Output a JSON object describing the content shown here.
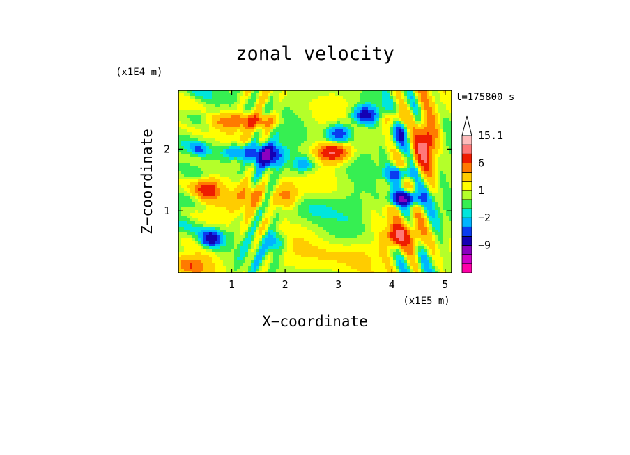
{
  "chart_data": {
    "type": "heatmap",
    "title": "zonal velocity",
    "xlabel": "X−coordinate",
    "ylabel": "Z−coordinate",
    "x_scale_label": "(x1E5 m)",
    "y_scale_label": "(x1E4 m)",
    "time_label": "t=175800 s",
    "xlim": [
      0,
      5.12
    ],
    "ylim": [
      0,
      2.95
    ],
    "x_ticks": [
      {
        "value": 1,
        "label": "1"
      },
      {
        "value": 2,
        "label": "2"
      },
      {
        "value": 3,
        "label": "3"
      },
      {
        "value": 4,
        "label": "4"
      },
      {
        "value": 5,
        "label": "5"
      }
    ],
    "y_ticks": [
      {
        "value": 1,
        "label": "1"
      },
      {
        "value": 2,
        "label": "2"
      }
    ],
    "colorbar": {
      "levels": [
        -15,
        -12,
        -9,
        -6,
        -4,
        -2,
        -1,
        0,
        1,
        2,
        4,
        6,
        9,
        12,
        15.1
      ],
      "colors": [
        "#ff00a8",
        "#d000c8",
        "#8a00c0",
        "#1400b4",
        "#0a3cf0",
        "#00b4ff",
        "#00e6dc",
        "#36ef52",
        "#b4ff2a",
        "#ffff00",
        "#ffcc00",
        "#ff7a00",
        "#ee1c00",
        "#ff7878",
        "#ffbcbc"
      ],
      "labeled_values": [
        {
          "value": 15.1,
          "label": "15.1"
        },
        {
          "value": 6,
          "label": "6"
        },
        {
          "value": 1,
          "label": "1"
        },
        {
          "value": -2,
          "label": "−2"
        },
        {
          "value": -9,
          "label": "−9"
        }
      ],
      "extend_max": true
    },
    "features": [
      {
        "x": 0.62,
        "z": 0.55,
        "u": -9,
        "sx": 0.2,
        "sz": 0.14
      },
      {
        "x": 1.65,
        "z": 1.9,
        "u": -11,
        "sx": 0.28,
        "sz": 0.17
      },
      {
        "x": 1.1,
        "z": 1.95,
        "u": -5,
        "sx": 0.3,
        "sz": 0.12
      },
      {
        "x": 0.4,
        "z": 2.0,
        "u": -3,
        "sx": 0.14,
        "sz": 0.09
      },
      {
        "x": 2.35,
        "z": 1.75,
        "u": -4,
        "sx": 0.24,
        "sz": 0.14
      },
      {
        "x": 3.0,
        "z": 2.25,
        "u": -7,
        "sx": 0.22,
        "sz": 0.16
      },
      {
        "x": 3.5,
        "z": 2.55,
        "u": -8,
        "sx": 0.22,
        "sz": 0.13
      },
      {
        "x": 4.25,
        "z": 1.2,
        "u": -9,
        "sx": 0.3,
        "sz": 0.12
      },
      {
        "x": 4.15,
        "z": 1.6,
        "u": -6,
        "sx": 0.25,
        "sz": 0.12
      },
      {
        "x": 4.15,
        "z": 2.2,
        "u": -6,
        "sx": 0.14,
        "sz": 0.22
      },
      {
        "x": 2.6,
        "z": 1.05,
        "u": -2,
        "sx": 0.4,
        "sz": 0.22
      },
      {
        "x": 3.3,
        "z": 1.05,
        "u": -1,
        "sx": 0.3,
        "sz": 0.28
      },
      {
        "x": 2.9,
        "z": 1.95,
        "u": 9,
        "sx": 0.3,
        "sz": 0.15
      },
      {
        "x": 1.5,
        "z": 2.45,
        "u": 6,
        "sx": 0.35,
        "sz": 0.12
      },
      {
        "x": 0.9,
        "z": 2.45,
        "u": 4,
        "sx": 0.3,
        "sz": 0.12
      },
      {
        "x": 0.55,
        "z": 1.35,
        "u": 7,
        "sx": 0.22,
        "sz": 0.16
      },
      {
        "x": 1.35,
        "z": 1.25,
        "u": 5,
        "sx": 0.28,
        "sz": 0.2
      },
      {
        "x": 2.0,
        "z": 1.25,
        "u": 5,
        "sx": 0.22,
        "sz": 0.2
      },
      {
        "x": 4.1,
        "z": 0.6,
        "u": 8,
        "sx": 0.2,
        "sz": 0.17
      },
      {
        "x": 4.45,
        "z": 0.6,
        "u": 4,
        "sx": 0.16,
        "sz": 0.3
      },
      {
        "x": 4.65,
        "z": 2.1,
        "u": 9,
        "sx": 0.18,
        "sz": 0.4
      },
      {
        "x": 4.05,
        "z": 2.5,
        "u": 4,
        "sx": 0.2,
        "sz": 0.12
      },
      {
        "x": 3.2,
        "z": 0.3,
        "u": 2,
        "sx": 0.7,
        "sz": 0.25
      },
      {
        "x": 1.8,
        "z": 0.5,
        "u": -4,
        "sx": 0.18,
        "sz": 0.16
      },
      {
        "x": 0.25,
        "z": 0.15,
        "u": 4,
        "sx": 0.3,
        "sz": 0.15
      }
    ]
  }
}
